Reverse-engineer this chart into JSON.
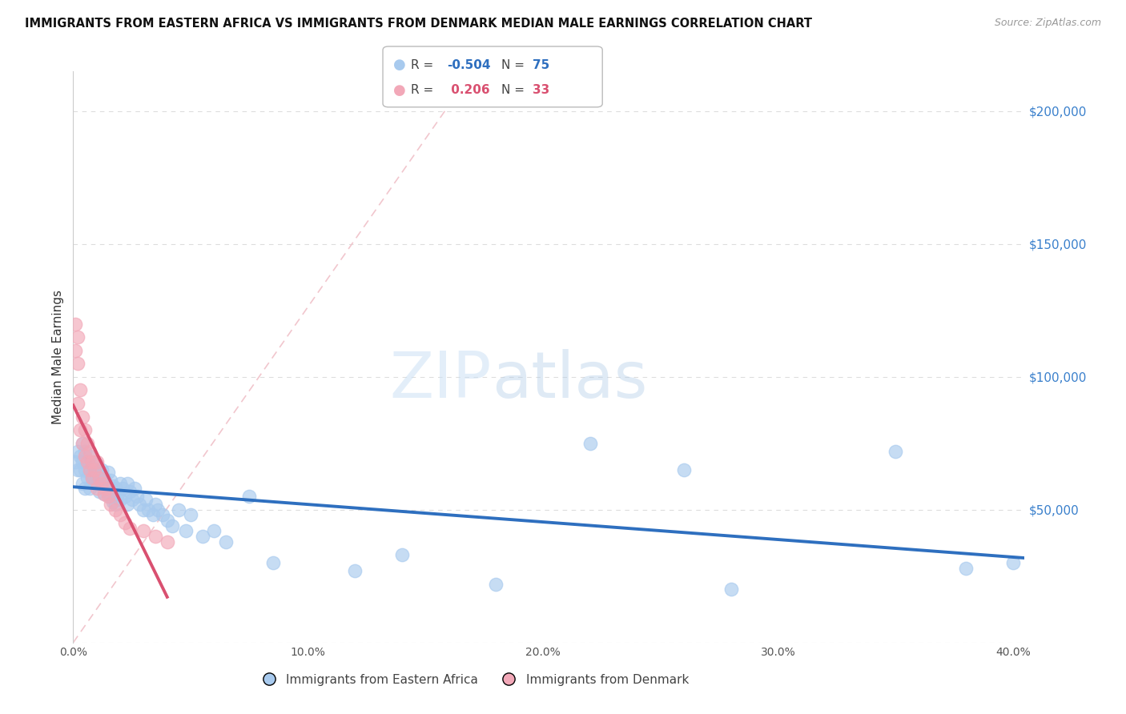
{
  "title": "IMMIGRANTS FROM EASTERN AFRICA VS IMMIGRANTS FROM DENMARK MEDIAN MALE EARNINGS CORRELATION CHART",
  "source": "Source: ZipAtlas.com",
  "ylabel": "Median Male Earnings",
  "y_ticks": [
    0,
    50000,
    100000,
    150000,
    200000
  ],
  "y_tick_labels": [
    "",
    "$50,000",
    "$100,000",
    "$150,000",
    "$200,000"
  ],
  "legend_blue_R": "-0.504",
  "legend_blue_N": "75",
  "legend_pink_R": "0.206",
  "legend_pink_N": "33",
  "legend_label_blue": "Immigrants from Eastern Africa",
  "legend_label_pink": "Immigrants from Denmark",
  "blue_color": "#A8CAEE",
  "pink_color": "#F2A8B8",
  "blue_line_color": "#2E6FBF",
  "pink_line_color": "#D95070",
  "diagonal_color": "#F0C0C8",
  "watermark_zip": "ZIP",
  "watermark_atlas": "atlas",
  "xlim": [
    0.0,
    0.405
  ],
  "ylim": [
    0,
    215000
  ],
  "x_ticks": [
    0.0,
    0.1,
    0.2,
    0.3,
    0.4
  ],
  "x_tick_labels": [
    "0.0%",
    "10.0%",
    "20.0%",
    "30.0%",
    "40.0%"
  ],
  "background_color": "#FFFFFF",
  "blue_scatter_x": [
    0.001,
    0.002,
    0.002,
    0.003,
    0.003,
    0.004,
    0.004,
    0.004,
    0.005,
    0.005,
    0.005,
    0.006,
    0.006,
    0.007,
    0.007,
    0.007,
    0.008,
    0.008,
    0.009,
    0.009,
    0.01,
    0.01,
    0.011,
    0.011,
    0.012,
    0.012,
    0.013,
    0.013,
    0.014,
    0.015,
    0.015,
    0.016,
    0.016,
    0.017,
    0.017,
    0.018,
    0.018,
    0.019,
    0.02,
    0.02,
    0.021,
    0.022,
    0.023,
    0.023,
    0.024,
    0.025,
    0.026,
    0.027,
    0.028,
    0.03,
    0.031,
    0.032,
    0.034,
    0.035,
    0.036,
    0.038,
    0.04,
    0.042,
    0.045,
    0.048,
    0.05,
    0.055,
    0.06,
    0.065,
    0.075,
    0.085,
    0.12,
    0.14,
    0.18,
    0.22,
    0.26,
    0.28,
    0.35,
    0.38,
    0.4
  ],
  "blue_scatter_y": [
    68000,
    72000,
    65000,
    70000,
    65000,
    75000,
    68000,
    60000,
    72000,
    65000,
    58000,
    68000,
    62000,
    70000,
    64000,
    58000,
    66000,
    62000,
    64000,
    60000,
    67000,
    60000,
    63000,
    57000,
    65000,
    59000,
    62000,
    56000,
    60000,
    64000,
    56000,
    61000,
    55000,
    59000,
    53000,
    58000,
    52000,
    56000,
    60000,
    54000,
    58000,
    55000,
    60000,
    52000,
    57000,
    54000,
    58000,
    55000,
    52000,
    50000,
    54000,
    50000,
    48000,
    52000,
    50000,
    48000,
    46000,
    44000,
    50000,
    42000,
    48000,
    40000,
    42000,
    38000,
    55000,
    30000,
    27000,
    33000,
    22000,
    75000,
    65000,
    20000,
    72000,
    28000,
    30000
  ],
  "pink_scatter_x": [
    0.001,
    0.001,
    0.002,
    0.002,
    0.002,
    0.003,
    0.003,
    0.004,
    0.004,
    0.005,
    0.005,
    0.006,
    0.006,
    0.007,
    0.007,
    0.008,
    0.008,
    0.009,
    0.01,
    0.01,
    0.011,
    0.012,
    0.013,
    0.014,
    0.015,
    0.016,
    0.018,
    0.02,
    0.022,
    0.024,
    0.03,
    0.035,
    0.04
  ],
  "pink_scatter_y": [
    110000,
    120000,
    105000,
    115000,
    90000,
    95000,
    80000,
    85000,
    75000,
    80000,
    70000,
    75000,
    68000,
    72000,
    65000,
    68000,
    62000,
    65000,
    68000,
    58000,
    62000,
    60000,
    56000,
    58000,
    55000,
    52000,
    50000,
    48000,
    45000,
    43000,
    42000,
    40000,
    38000
  ]
}
